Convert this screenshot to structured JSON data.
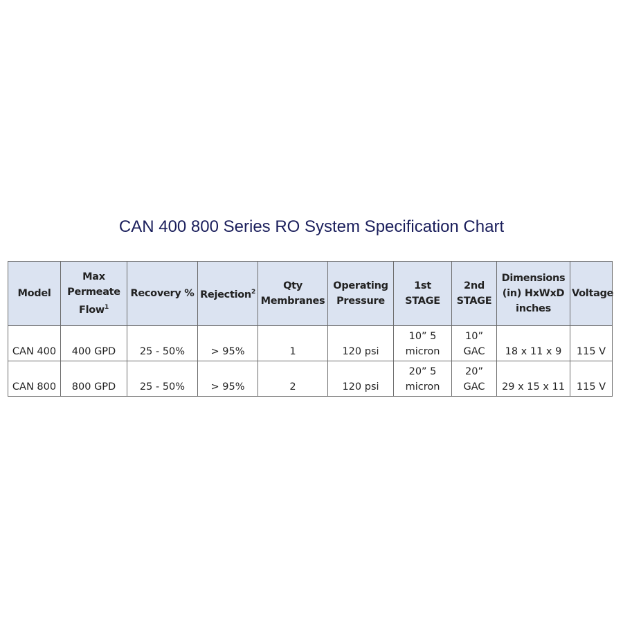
{
  "title": "CAN 400 800 Series RO System Specification Chart",
  "table": {
    "headers": [
      {
        "text": "Model"
      },
      {
        "text": "Max Permeate Flow",
        "sup": "1"
      },
      {
        "text": "Recovery %"
      },
      {
        "text": "Rejection",
        "sup": "2"
      },
      {
        "text": "Qty Membranes"
      },
      {
        "text": "Operating Pressure"
      },
      {
        "text": "1st STAGE"
      },
      {
        "text": "2nd STAGE"
      },
      {
        "text": "Dimensions (in) HxWxD inches"
      },
      {
        "text": "Voltage"
      }
    ],
    "rows": [
      [
        "CAN 400",
        "400 GPD",
        "25 - 50%",
        "> 95%",
        "1",
        "120 psi",
        "10”  5 micron",
        "10” GAC",
        "18 x 11 x 9",
        "115 V"
      ],
      [
        "CAN 800",
        "800 GPD",
        "25 - 50%",
        "> 95%",
        "2",
        "120 psi",
        "20”  5 micron",
        "20” GAC",
        "29 x 15 x 11",
        "115 V"
      ]
    ]
  },
  "colors": {
    "title": "#1b1f5c",
    "header_bg": "#dbe3f1",
    "border": "#6b6b6b"
  }
}
